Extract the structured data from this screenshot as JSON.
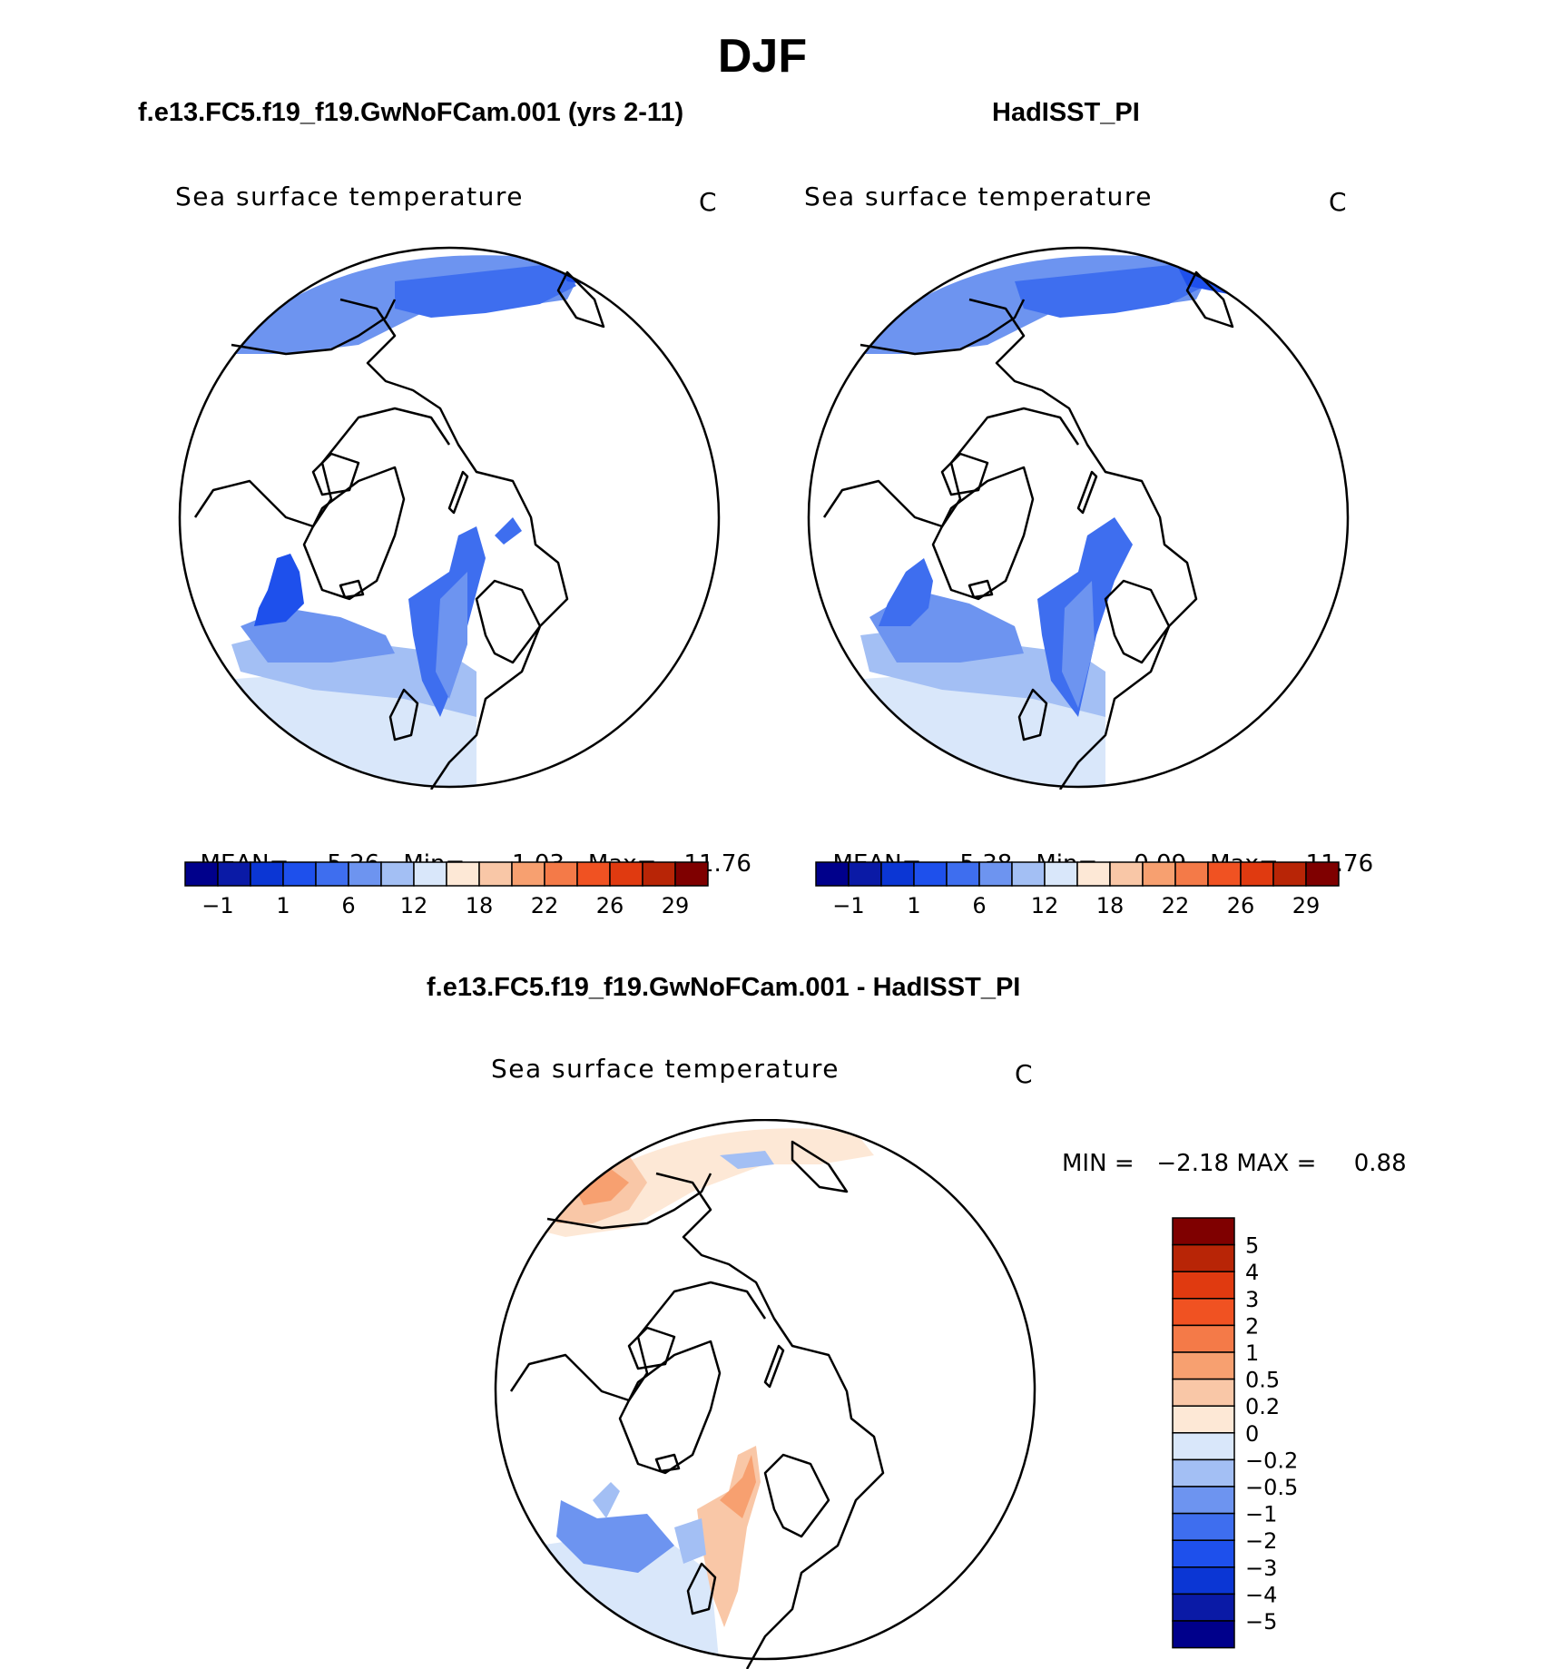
{
  "title": "DJF",
  "top_left": {
    "case": "f.e13.FC5.f19_f19.GwNoFCam.001 (yrs 2-11)",
    "variable": "Sea surface temperature",
    "units": "C",
    "stats": {
      "mean_label": "MEAN=",
      "mean": "5.26",
      "min_label": "Min=",
      "min": "−1.03",
      "max_label": "Max=",
      "max": "11.76"
    }
  },
  "top_right": {
    "case": "HadISST_PI",
    "variable": "Sea surface temperature",
    "units": "C",
    "stats": {
      "mean_label": "MEAN=",
      "mean": "5.38",
      "min_label": "Min=",
      "min": "0.09",
      "max_label": "Max=",
      "max": "11.76"
    }
  },
  "bottom": {
    "case": "f.e13.FC5.f19_f19.GwNoFCam.001 - HadISST_PI",
    "variable": "Sea surface temperature",
    "units": "C",
    "minmax": "MIN =   −2.18 MAX =     0.88"
  },
  "sst_colorbar": {
    "colors": [
      "#00008b",
      "#0a1aa6",
      "#0b36d4",
      "#1e50ec",
      "#3e6eef",
      "#6d94f0",
      "#a3bff4",
      "#d9e7fa",
      "#fde8d6",
      "#f9c7a7",
      "#f7a070",
      "#f47a48",
      "#f05222",
      "#e03a10",
      "#b82506",
      "#7f0000"
    ],
    "labels": [
      "−1",
      "1",
      "6",
      "12",
      "18",
      "22",
      "26",
      "29"
    ]
  },
  "diff_colorbar": {
    "colors": [
      "#00008b",
      "#0a1aa6",
      "#0b36d4",
      "#1e50ec",
      "#3e6eef",
      "#6d94f0",
      "#a3bff4",
      "#d9e7fa",
      "#fde8d6",
      "#f9c7a7",
      "#f7a070",
      "#f47a48",
      "#f05222",
      "#e03a10",
      "#b82506",
      "#7f0000"
    ],
    "labels": [
      "5",
      "4",
      "3",
      "2",
      "1",
      "0.5",
      "0.2",
      "0",
      "−0.2",
      "−0.5",
      "−1",
      "−2",
      "−3",
      "−4",
      "−5"
    ]
  }
}
